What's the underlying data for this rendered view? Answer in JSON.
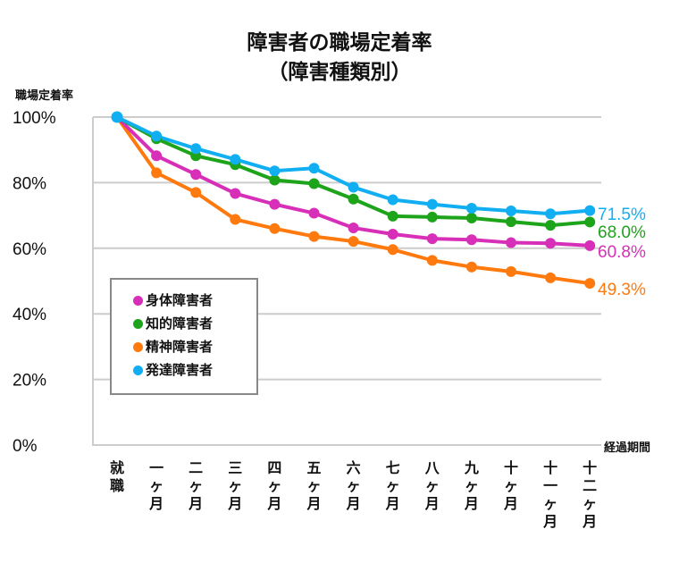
{
  "chart_data": {
    "type": "line",
    "title": "障害者の職場定着率",
    "subtitle": "（障害種類別）",
    "ylabel": "職場定着率",
    "xlabel": "経過期間",
    "ylim": [
      0,
      100
    ],
    "yticks": [
      0,
      20,
      40,
      60,
      80,
      100
    ],
    "ytick_labels": [
      "0%",
      "20%",
      "40%",
      "60%",
      "80%",
      "100%"
    ],
    "grid": true,
    "legend_position": "lower-left",
    "categories": [
      "就職",
      "一ヶ月",
      "二ヶ月",
      "三ヶ月",
      "四ヶ月",
      "五ヶ月",
      "六ヶ月",
      "七ヶ月",
      "八ヶ月",
      "九ヶ月",
      "十ヶ月",
      "十一ヶ月",
      "十二ヶ月"
    ],
    "series": [
      {
        "name": "身体障害者",
        "color": "#d82fb8",
        "values": [
          100,
          88.2,
          82.5,
          76.7,
          73.4,
          70.7,
          66.2,
          64.3,
          62.9,
          62.6,
          61.7,
          61.5,
          60.8
        ],
        "end_label": "60.8%"
      },
      {
        "name": "知的障害者",
        "color": "#1ea41a",
        "values": [
          100,
          93.4,
          88.2,
          85.5,
          80.8,
          79.7,
          75.0,
          69.8,
          69.5,
          69.2,
          68.1,
          67.0,
          68.0
        ],
        "end_label": "68.0%"
      },
      {
        "name": "精神障害者",
        "color": "#ff7a0e",
        "values": [
          100,
          83.0,
          77.0,
          68.8,
          66.0,
          63.6,
          62.1,
          59.6,
          56.3,
          54.3,
          52.9,
          51.0,
          49.3
        ],
        "end_label": "49.3%"
      },
      {
        "name": "発達障害者",
        "color": "#12aef2",
        "values": [
          100,
          94.2,
          90.4,
          87.1,
          83.6,
          84.4,
          78.6,
          74.8,
          73.4,
          72.2,
          71.4,
          70.5,
          71.5
        ],
        "end_label": "71.5%"
      }
    ],
    "legend_order": [
      0,
      1,
      2,
      3
    ]
  }
}
